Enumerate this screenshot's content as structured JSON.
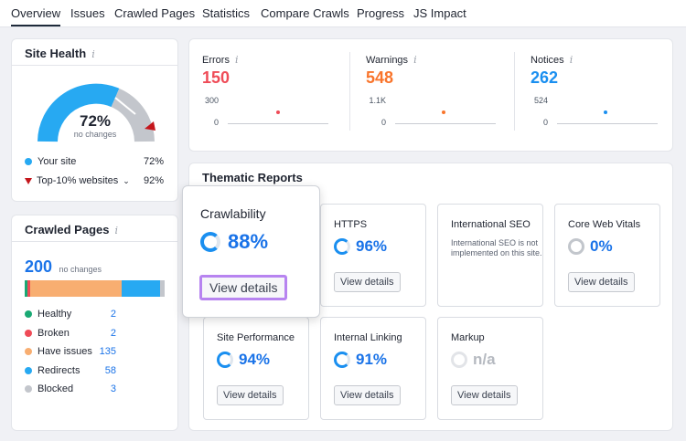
{
  "tabs": [
    "Overview",
    "Issues",
    "Crawled Pages",
    "Statistics",
    "Compare Crawls",
    "Progress",
    "JS Impact"
  ],
  "site_health": {
    "title": "Site Health",
    "percent": "72%",
    "sub": "no changes",
    "your_site_label": "Your site",
    "your_site_value": "72%",
    "top_label": "Top-10% websites",
    "top_value": "92%",
    "colors": {
      "your_site": "#27a9f2",
      "top": "#c4161c",
      "rest": "#c3c6cc"
    }
  },
  "crawled_pages": {
    "title": "Crawled Pages",
    "total": "200",
    "sub": "no changes",
    "items": [
      {
        "label": "Healthy",
        "value": "2",
        "color": "#19a974"
      },
      {
        "label": "Broken",
        "value": "2",
        "color": "#ef4b57"
      },
      {
        "label": "Have issues",
        "value": "135",
        "color": "#f8ae71"
      },
      {
        "label": "Redirects",
        "value": "58",
        "color": "#27a9f2"
      },
      {
        "label": "Blocked",
        "value": "3",
        "color": "#c3c6cc"
      }
    ]
  },
  "metrics": [
    {
      "label": "Errors",
      "value": "150",
      "color": "#ef4b57",
      "max": "300",
      "min": "0"
    },
    {
      "label": "Warnings",
      "value": "548",
      "color": "#f9752c",
      "max": "1.1K",
      "min": "0"
    },
    {
      "label": "Notices",
      "value": "262",
      "color": "#1a8ff0",
      "max": "524",
      "min": "0"
    }
  ],
  "thematic": {
    "title": "Thematic Reports",
    "popup": {
      "title": "Crawlability",
      "value": "88%",
      "button": "View details"
    },
    "tiles": [
      {
        "title": "HTTPS",
        "value": "96%",
        "button": "View details"
      },
      {
        "title": "International SEO",
        "note": "International SEO is not implemented on this site.",
        "button": ""
      },
      {
        "title": "Core Web Vitals",
        "value": "0%",
        "button": "View details"
      },
      {
        "title": "Site Performance",
        "value": "94%",
        "button": "View details"
      },
      {
        "title": "Internal Linking",
        "value": "91%",
        "button": "View details"
      },
      {
        "title": "Markup",
        "value": "n/a",
        "button": "View details"
      }
    ]
  },
  "info_icon": "i"
}
